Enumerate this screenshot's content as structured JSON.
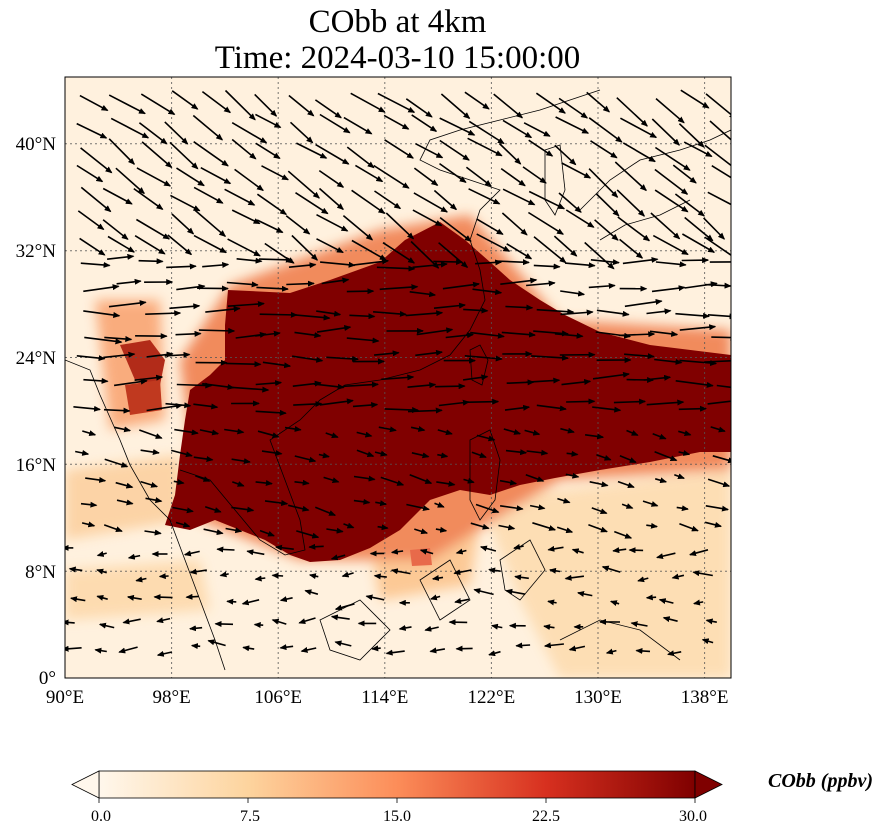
{
  "title": {
    "line1": "CObb at 4km",
    "line2": "Time: 2024-03-10 15:00:00"
  },
  "map": {
    "variable": "CObb",
    "level": "4km",
    "lon_range": [
      90,
      140
    ],
    "lat_range": [
      0,
      45
    ],
    "lon_ticks": [
      "90°E",
      "98°E",
      "106°E",
      "114°E",
      "122°E",
      "130°E",
      "138°E"
    ],
    "lat_ticks": [
      "0°",
      "8°N",
      "16°N",
      "24°N",
      "32°N",
      "40°N"
    ],
    "gridlines": true,
    "overlay": "wind vectors"
  },
  "colorbar": {
    "label": "CObb (ppbv)",
    "ticks": [
      "0.0",
      "7.5",
      "15.0",
      "22.5",
      "30.0"
    ],
    "range": [
      0,
      30
    ],
    "extend": "both",
    "colormap": "OrRd",
    "colors": [
      "#fff7ec",
      "#fdd49e",
      "#fc8d59",
      "#d7301f",
      "#7f0000"
    ]
  }
}
